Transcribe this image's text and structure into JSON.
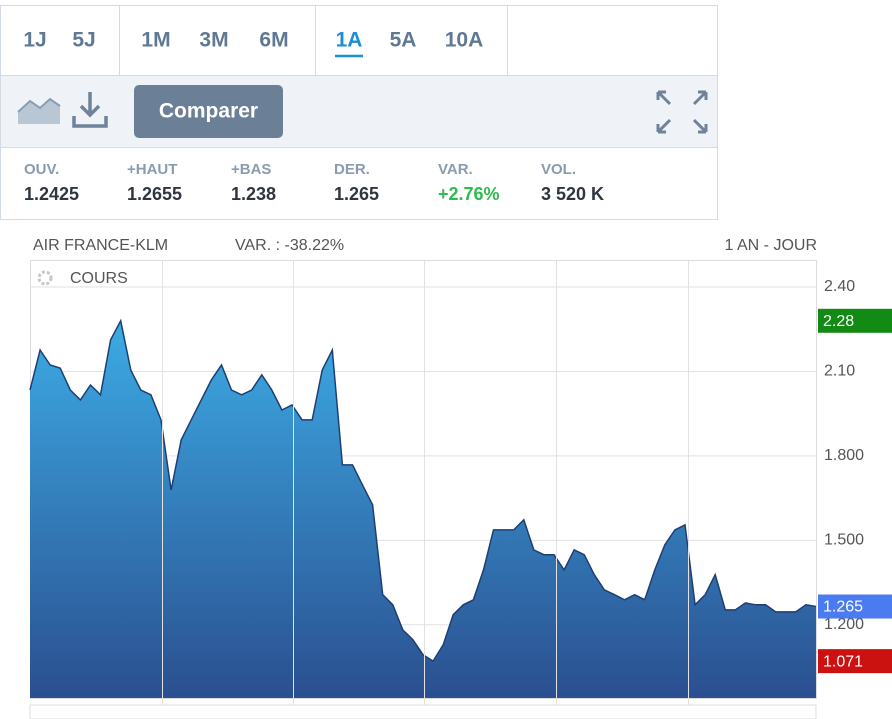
{
  "toolbar": {
    "periods": [
      [
        {
          "label": "1J"
        },
        {
          "label": "5J"
        }
      ],
      [
        {
          "label": "1M"
        },
        {
          "label": "3M"
        },
        {
          "label": "6M"
        }
      ],
      [
        {
          "label": "1A",
          "active": true
        },
        {
          "label": "5A"
        },
        {
          "label": "10A"
        }
      ]
    ],
    "button": "Comparer",
    "stats": [
      {
        "label": "OUV.",
        "value": "1.2425"
      },
      {
        "label": "+HAUT",
        "value": "1.2655"
      },
      {
        "label": "+BAS",
        "value": "1.238"
      },
      {
        "label": "DER.",
        "value": "1.265"
      },
      {
        "label": "VAR.",
        "value": "+2.76%",
        "color": "#2dbb4e"
      },
      {
        "label": "VOL.",
        "value": "3 520 K"
      }
    ]
  },
  "chart_data": {
    "type": "area",
    "title": "AIR FRANCE-KLM",
    "subtitle": "VAR. : -38.22%",
    "period_label": "1 AN - JOUR",
    "panel_label": "COURS",
    "series": [
      {
        "name": "COURS",
        "color": "#1e3f73",
        "values": [
          2.034,
          2.176,
          2.123,
          2.112,
          2.034,
          1.999,
          2.052,
          2.017,
          2.212,
          2.28,
          2.105,
          2.034,
          2.017,
          1.928,
          1.679,
          1.857,
          1.928,
          1.999,
          2.07,
          2.123,
          2.034,
          2.017,
          2.034,
          2.088,
          2.034,
          1.963,
          1.981,
          1.928,
          1.928,
          2.105,
          2.176,
          1.768,
          1.768,
          1.697,
          1.626,
          1.307,
          1.271,
          1.182,
          1.147,
          1.094,
          1.071,
          1.129,
          1.236,
          1.271,
          1.289,
          1.395,
          1.537,
          1.537,
          1.537,
          1.573,
          1.466,
          1.449,
          1.449,
          1.395,
          1.466,
          1.449,
          1.378,
          1.324,
          1.307,
          1.289,
          1.307,
          1.289,
          1.395,
          1.484,
          1.537,
          1.555,
          1.271,
          1.307,
          1.378,
          1.253,
          1.253,
          1.278,
          1.271,
          1.271,
          1.246,
          1.246,
          1.246,
          1.271,
          1.265
        ]
      }
    ],
    "ylim": [
      0.94,
      2.496
    ],
    "yticks": [
      {
        "value": 2.4,
        "label": "2.40"
      },
      {
        "value": 2.1,
        "label": "2.10"
      },
      {
        "value": 1.8,
        "label": "1.800"
      },
      {
        "value": 1.5,
        "label": "1.500"
      },
      {
        "value": 1.2,
        "label": "1.200"
      }
    ],
    "grid": true,
    "markers": [
      {
        "value": 2.28,
        "color": "#138a13"
      },
      {
        "value": 1.265,
        "color": "#4b7bf0"
      },
      {
        "value": 1.071,
        "color": "#cc1111"
      }
    ]
  }
}
